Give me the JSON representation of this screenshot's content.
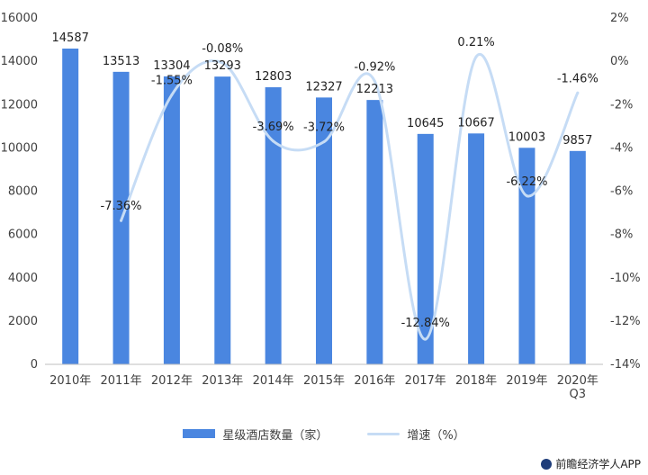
{
  "chart_data": {
    "type": "bar",
    "categories": [
      "2010年",
      "2011年",
      "2012年",
      "2013年",
      "2014年",
      "2015年",
      "2016年",
      "2017年",
      "2018年",
      "2019年",
      "2020年\nQ3"
    ],
    "series": [
      {
        "name": "星级酒店数量（家）",
        "type": "bar",
        "axis": "left",
        "values": [
          14587,
          13513,
          13304,
          13293,
          12803,
          12327,
          12213,
          10645,
          10667,
          10003,
          9857
        ],
        "labels": [
          "14587",
          "13513",
          "13304",
          "13293",
          "12803",
          "12327",
          "12213",
          "10645",
          "10667",
          "10003",
          "9857"
        ]
      },
      {
        "name": "增速（%）",
        "type": "line",
        "axis": "right",
        "values": [
          null,
          -7.36,
          -1.55,
          -0.08,
          -3.69,
          -3.72,
          -0.92,
          -12.84,
          0.21,
          -6.22,
          -1.46
        ],
        "labels": [
          "",
          "-7.36%",
          "-1.55%",
          "-0.08%",
          "-3.69%",
          "-3.72%",
          "-0.92%",
          "-12.84%",
          "0.21%",
          "-6.22%",
          "-1.46%"
        ]
      }
    ],
    "y_left": {
      "ylim": [
        0,
        16000
      ],
      "ticks": [
        "0",
        "2000",
        "4000",
        "6000",
        "8000",
        "10000",
        "12000",
        "14000",
        "16000"
      ]
    },
    "y_right": {
      "ylim": [
        -14,
        2
      ],
      "ticks": [
        "-14%",
        "-12%",
        "-10%",
        "-8%",
        "-6%",
        "-4%",
        "-2%",
        "0%",
        "2%"
      ]
    },
    "grid": false,
    "legend_position": "bottom",
    "colors": {
      "bar": "#4a86e0",
      "line": "#c6dcf5"
    }
  },
  "footer": {
    "brand": "前瞻经济学人APP"
  }
}
